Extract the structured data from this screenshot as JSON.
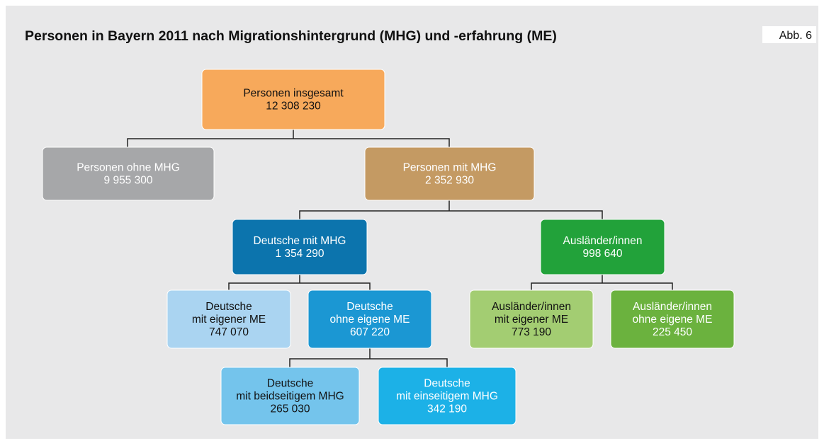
{
  "header": {
    "title": "Personen in Bayern 2011 nach Migrationshintergrund (MHG) und -erfahrung (ME)",
    "badge": "Abb. 6"
  },
  "nodes": [
    {
      "lines": [
        "Personen insgesamt"
      ],
      "value": "12 308 230"
    },
    {
      "lines": [
        "Personen ohne MHG"
      ],
      "value": "9 955 300"
    },
    {
      "lines": [
        "Personen mit MHG"
      ],
      "value": "2 352 930"
    },
    {
      "lines": [
        "Deutsche mit MHG"
      ],
      "value": "1 354 290"
    },
    {
      "lines": [
        "Ausländer/innen"
      ],
      "value": "998 640"
    },
    {
      "lines": [
        "Deutsche",
        "mit eigener ME"
      ],
      "value": "747 070"
    },
    {
      "lines": [
        "Deutsche",
        "ohne eigene ME"
      ],
      "value": "607 220"
    },
    {
      "lines": [
        "Ausländer/innen",
        "mit eigener ME"
      ],
      "value": "773 190"
    },
    {
      "lines": [
        "Ausländer/innen",
        "ohne eigene ME"
      ],
      "value": "225 450"
    },
    {
      "lines": [
        "Deutsche",
        "mit beidseitigem MHG"
      ],
      "value": "265 030"
    },
    {
      "lines": [
        "Deutsche",
        "mit einseitigem MHG"
      ],
      "value": "342 190"
    }
  ]
}
